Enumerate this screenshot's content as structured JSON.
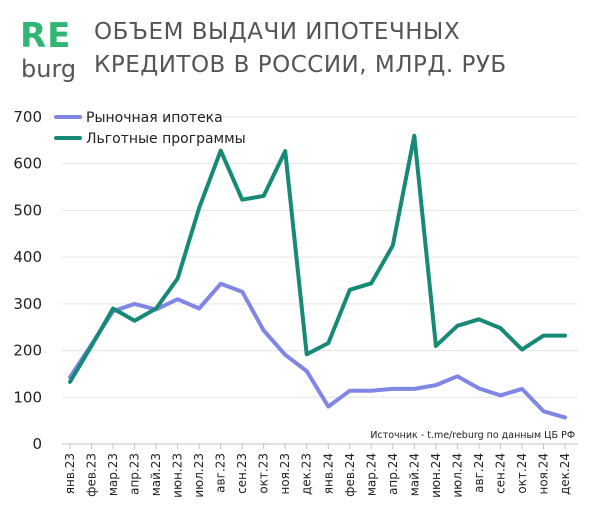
{
  "logo": {
    "top": "RE",
    "bottom": "burg"
  },
  "title": {
    "line1": "ОБЪЕМ ВЫДАЧИ ИПОТЕЧНЫХ",
    "line2": "КРЕДИТОВ В РОССИИ, МЛРД. РУБ"
  },
  "source": "Источник  - t.me/reburg по данным  ЦБ РФ",
  "colors": {
    "market": "#7f86e6",
    "preferential": "#168a76",
    "logo_accent": "#2fb673",
    "text_gray": "#555555"
  },
  "chart_data": {
    "type": "line",
    "title": "ОБЪЕМ ВЫДАЧИ ИПОТЕЧНЫХ КРЕДИТОВ В РОССИИ, МЛРД. РУБ",
    "categories": [
      "янв.23",
      "фев.23",
      "мар.23",
      "апр.23",
      "май.23",
      "июн.23",
      "июл.23",
      "авг.23",
      "сен.23",
      "окт.23",
      "ноя.23",
      "дек.23",
      "янв.24",
      "фев.24",
      "мар.24",
      "апр.24",
      "май.24",
      "июн.24",
      "июл.24",
      "авг.24",
      "сен.24",
      "окт.24",
      "ноя.24",
      "дек.24"
    ],
    "series": [
      {
        "name": "Рыночная ипотека",
        "color": "#7f86e6",
        "values": [
          143,
          213,
          284,
          300,
          288,
          310,
          290,
          343,
          326,
          243,
          191,
          156,
          80,
          114,
          114,
          118,
          118,
          126,
          145,
          119,
          104,
          118,
          70,
          57
        ]
      },
      {
        "name": "Льготные программы",
        "color": "#168a76",
        "values": [
          133,
          210,
          290,
          264,
          290,
          354,
          505,
          628,
          523,
          531,
          627,
          192,
          216,
          330,
          344,
          425,
          660,
          210,
          253,
          267,
          248,
          202,
          232,
          232
        ]
      }
    ],
    "yticks": [
      0,
      100,
      200,
      300,
      400,
      500,
      600,
      700
    ],
    "ylim": [
      0,
      700
    ],
    "grid": true,
    "legend": "top-left"
  }
}
